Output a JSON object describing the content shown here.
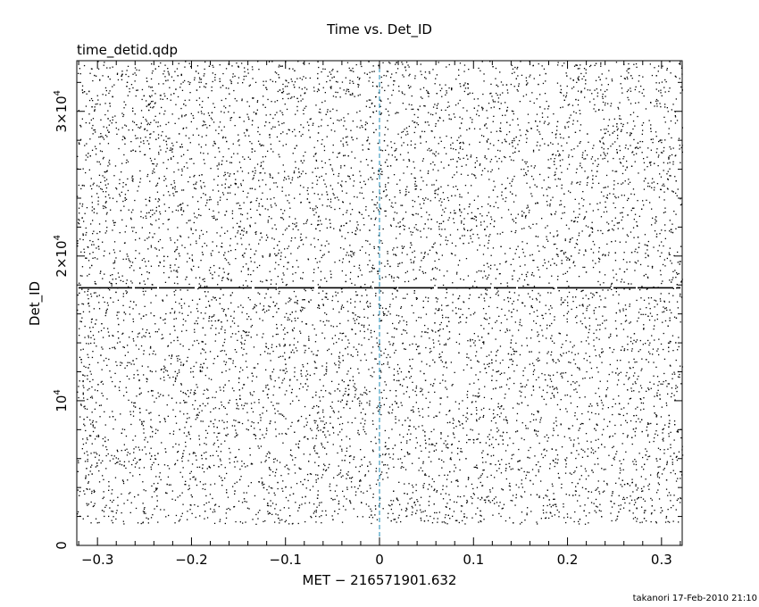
{
  "chart_data": {
    "type": "scatter",
    "title": "Time vs. Det_ID",
    "subtitle": "time_detid.qdp",
    "xlabel": "MET − 216571901.632",
    "ylabel": "Det_ID",
    "footer": "takanori 17-Feb-2010 21:10",
    "xlim": [
      -0.322,
      0.322
    ],
    "ylim": [
      0,
      33500
    ],
    "x_ticks": [
      {
        "value": -0.3,
        "label": "−0.3"
      },
      {
        "value": -0.2,
        "label": "−0.2"
      },
      {
        "value": -0.1,
        "label": "−0.1"
      },
      {
        "value": 0,
        "label": "0"
      },
      {
        "value": 0.1,
        "label": "0.1"
      },
      {
        "value": 0.2,
        "label": "0.2"
      },
      {
        "value": 0.3,
        "label": "0.3"
      }
    ],
    "y_ticks": [
      {
        "value": 0,
        "base": "0",
        "exp": ""
      },
      {
        "value": 10000,
        "base": "10",
        "exp": "4"
      },
      {
        "value": 20000,
        "base": "2×10",
        "exp": "4"
      },
      {
        "value": 30000,
        "base": "3×10",
        "exp": "4"
      }
    ],
    "reference_line": {
      "x": 0,
      "color": "#1a8ab5",
      "style": "dashed"
    },
    "dense_band": {
      "y": 17800
    },
    "point_density": {
      "n_points": 9000,
      "y_min": 1500,
      "y_max": 33500
    },
    "grid": false,
    "legend": "none",
    "colors": {
      "points": "#000000",
      "axes": "#000000"
    }
  }
}
